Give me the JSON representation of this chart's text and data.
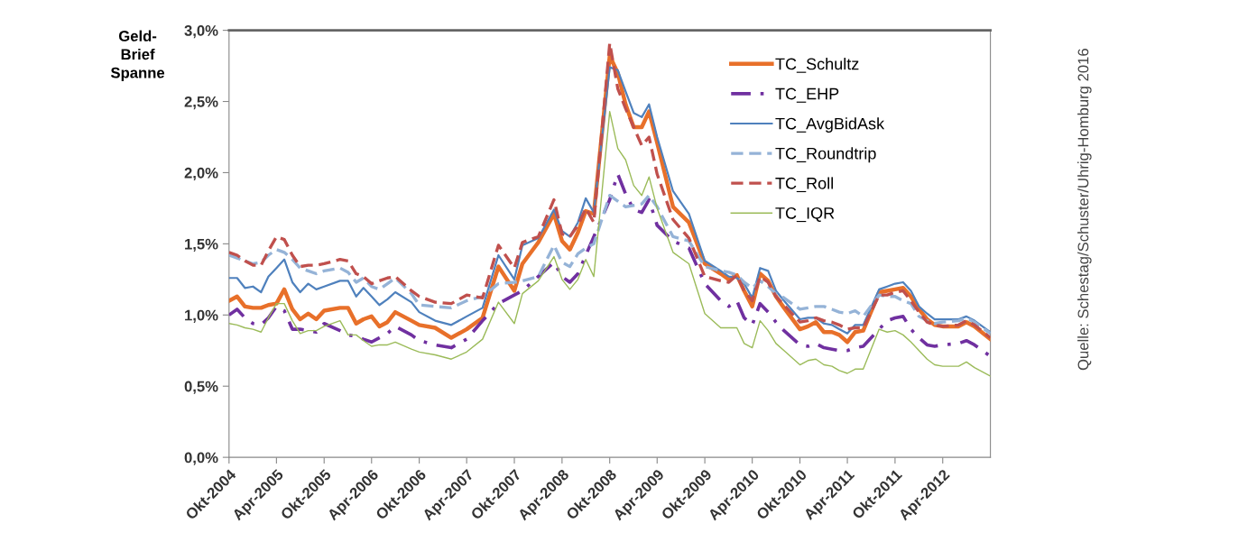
{
  "chart_data": {
    "type": "line",
    "ylabel": "Geld-\nBrief\nSpanne",
    "x": [
      "2004-10",
      "2004-11",
      "2004-12",
      "2005-01",
      "2005-02",
      "2005-03",
      "2005-04",
      "2005-05",
      "2005-06",
      "2005-07",
      "2005-08",
      "2005-09",
      "2005-10",
      "2005-12",
      "2006-01",
      "2006-02",
      "2006-03",
      "2006-04",
      "2006-05",
      "2006-06",
      "2006-07",
      "2006-09",
      "2006-10",
      "2006-12",
      "2007-02",
      "2007-04",
      "2007-06",
      "2007-08",
      "2007-10",
      "2007-11",
      "2008-01",
      "2008-03",
      "2008-04",
      "2008-05",
      "2008-06",
      "2008-07",
      "2008-08",
      "2008-10",
      "2008-11",
      "2008-12",
      "2009-01",
      "2009-02",
      "2009-03",
      "2009-04",
      "2009-06",
      "2009-08",
      "2009-10",
      "2009-12",
      "2010-01",
      "2010-02",
      "2010-03",
      "2010-04",
      "2010-05",
      "2010-06",
      "2010-07",
      "2010-08",
      "2010-10",
      "2010-11",
      "2010-12",
      "2011-01",
      "2011-02",
      "2011-03",
      "2011-04",
      "2011-05",
      "2011-06",
      "2011-08",
      "2011-09",
      "2011-10",
      "2011-11",
      "2011-12",
      "2012-01",
      "2012-02",
      "2012-03",
      "2012-04",
      "2012-06",
      "2012-07",
      "2012-08",
      "2012-10"
    ],
    "series": [
      {
        "name": "TC_Schultz",
        "color": "#e8702a",
        "line_style": "solid",
        "values": [
          1.1,
          1.13,
          1.06,
          1.05,
          1.05,
          1.07,
          1.08,
          1.18,
          1.04,
          0.97,
          1.01,
          0.97,
          1.03,
          1.05,
          1.05,
          0.94,
          0.97,
          0.99,
          0.92,
          0.95,
          1.02,
          0.96,
          0.93,
          0.91,
          0.84,
          0.9,
          0.98,
          1.34,
          1.17,
          1.36,
          1.51,
          1.71,
          1.52,
          1.46,
          1.58,
          1.73,
          1.71,
          2.82,
          2.7,
          2.48,
          2.32,
          2.32,
          2.43,
          2.21,
          1.76,
          1.65,
          1.36,
          1.29,
          1.25,
          1.28,
          1.17,
          1.06,
          1.29,
          1.24,
          1.13,
          1.05,
          0.9,
          0.92,
          0.95,
          0.88,
          0.88,
          0.86,
          0.81,
          0.88,
          0.89,
          1.16,
          1.17,
          1.18,
          1.19,
          1.13,
          1.04,
          0.97,
          0.93,
          0.92,
          0.92,
          0.95,
          0.92,
          0.83
        ]
      },
      {
        "name": "TC_EHP",
        "color": "#7030a0",
        "line_style": "dashdot",
        "values": [
          1.0,
          1.04,
          0.98,
          0.94,
          0.93,
          0.98,
          1.06,
          1.03,
          0.9,
          0.9,
          0.89,
          0.88,
          0.94,
          0.89,
          0.86,
          0.85,
          0.83,
          0.81,
          0.84,
          0.87,
          0.92,
          0.86,
          0.82,
          0.79,
          0.77,
          0.83,
          0.96,
          1.08,
          1.14,
          1.17,
          1.27,
          1.37,
          1.27,
          1.23,
          1.29,
          1.42,
          1.55,
          1.81,
          1.99,
          1.85,
          1.74,
          1.72,
          1.81,
          1.63,
          1.52,
          1.47,
          1.22,
          1.1,
          1.06,
          1.1,
          0.98,
          0.93,
          1.08,
          1.02,
          0.95,
          0.89,
          0.79,
          0.78,
          0.8,
          0.77,
          0.76,
          0.75,
          0.75,
          0.77,
          0.78,
          0.9,
          0.96,
          0.98,
          0.99,
          0.9,
          0.84,
          0.79,
          0.78,
          0.79,
          0.8,
          0.82,
          0.79,
          0.71
        ]
      },
      {
        "name": "TC_AvgBidAsk",
        "color": "#4f81bd",
        "line_style": "solid",
        "values": [
          1.26,
          1.26,
          1.19,
          1.2,
          1.16,
          1.27,
          1.33,
          1.39,
          1.23,
          1.16,
          1.22,
          1.18,
          1.2,
          1.24,
          1.24,
          1.13,
          1.19,
          1.13,
          1.07,
          1.11,
          1.16,
          1.09,
          1.02,
          0.96,
          0.93,
          0.99,
          1.05,
          1.42,
          1.25,
          1.49,
          1.54,
          1.74,
          1.59,
          1.55,
          1.65,
          1.82,
          1.72,
          2.74,
          2.72,
          2.57,
          2.42,
          2.39,
          2.48,
          2.25,
          1.87,
          1.71,
          1.38,
          1.31,
          1.27,
          1.26,
          1.22,
          1.12,
          1.33,
          1.31,
          1.17,
          1.1,
          0.97,
          0.98,
          0.98,
          0.94,
          0.93,
          0.9,
          0.87,
          0.93,
          0.93,
          1.18,
          1.2,
          1.22,
          1.23,
          1.17,
          1.06,
          1.01,
          0.97,
          0.97,
          0.97,
          0.99,
          0.96,
          0.88
        ]
      },
      {
        "name": "TC_Roundtrip",
        "color": "#95b3d7",
        "line_style": "dashed",
        "values": [
          1.42,
          1.4,
          1.38,
          1.36,
          1.37,
          1.42,
          1.46,
          1.44,
          1.39,
          1.33,
          1.31,
          1.29,
          1.31,
          1.33,
          1.3,
          1.23,
          1.26,
          1.2,
          1.18,
          1.22,
          1.26,
          1.15,
          1.07,
          1.06,
          1.05,
          1.1,
          1.13,
          1.22,
          1.23,
          1.24,
          1.27,
          1.49,
          1.37,
          1.34,
          1.43,
          1.47,
          1.5,
          1.84,
          1.8,
          1.76,
          1.77,
          1.78,
          1.84,
          1.76,
          1.55,
          1.52,
          1.34,
          1.31,
          1.3,
          1.28,
          1.23,
          1.19,
          1.24,
          1.2,
          1.15,
          1.12,
          1.04,
          1.05,
          1.06,
          1.06,
          1.04,
          1.02,
          1.01,
          1.03,
          0.99,
          1.14,
          1.13,
          1.13,
          1.1,
          1.08,
          0.99,
          0.96,
          0.94,
          0.95,
          0.96,
          0.98,
          0.95,
          0.87
        ]
      },
      {
        "name": "TC_Roll",
        "color": "#c0504d",
        "line_style": "dashed",
        "values": [
          1.44,
          1.42,
          1.38,
          1.35,
          1.35,
          1.45,
          1.55,
          1.53,
          1.42,
          1.34,
          1.35,
          1.35,
          1.36,
          1.39,
          1.38,
          1.29,
          1.27,
          1.22,
          1.24,
          1.26,
          1.27,
          1.17,
          1.13,
          1.09,
          1.08,
          1.14,
          1.12,
          1.49,
          1.33,
          1.51,
          1.55,
          1.81,
          1.57,
          1.55,
          1.63,
          1.75,
          1.65,
          2.91,
          2.59,
          2.45,
          2.32,
          2.19,
          2.25,
          1.99,
          1.67,
          1.54,
          1.27,
          1.24,
          1.23,
          1.28,
          1.17,
          1.1,
          1.27,
          1.23,
          1.13,
          1.07,
          0.95,
          0.96,
          0.98,
          0.96,
          0.95,
          0.93,
          0.9,
          0.91,
          0.91,
          1.14,
          1.14,
          1.16,
          1.17,
          1.1,
          1.02,
          0.95,
          0.93,
          0.92,
          0.93,
          0.96,
          0.93,
          0.84
        ]
      },
      {
        "name": "TC_IQR",
        "color": "#9bbb59",
        "line_style": "solid",
        "values": [
          0.94,
          0.93,
          0.91,
          0.9,
          0.88,
          0.98,
          1.08,
          1.08,
          0.96,
          0.87,
          0.89,
          0.89,
          0.92,
          0.96,
          0.86,
          0.86,
          0.82,
          0.78,
          0.79,
          0.79,
          0.81,
          0.76,
          0.74,
          0.72,
          0.69,
          0.74,
          0.83,
          1.09,
          0.94,
          1.15,
          1.24,
          1.41,
          1.25,
          1.18,
          1.25,
          1.39,
          1.27,
          2.43,
          2.17,
          2.09,
          1.91,
          1.84,
          1.97,
          1.75,
          1.44,
          1.36,
          1.01,
          0.91,
          0.91,
          0.91,
          0.8,
          0.77,
          0.96,
          0.89,
          0.8,
          0.75,
          0.65,
          0.68,
          0.69,
          0.65,
          0.64,
          0.61,
          0.59,
          0.62,
          0.62,
          0.9,
          0.88,
          0.89,
          0.86,
          0.81,
          0.75,
          0.69,
          0.65,
          0.64,
          0.64,
          0.67,
          0.63,
          0.57
        ]
      }
    ],
    "ylim": [
      0,
      3
    ],
    "yticks": [
      {
        "value": 0,
        "label": "0,0%"
      },
      {
        "value": 0.5,
        "label": "0,5%"
      },
      {
        "value": 1,
        "label": "1,0%"
      },
      {
        "value": 1.5,
        "label": "1,5%"
      },
      {
        "value": 2,
        "label": "2,0%"
      },
      {
        "value": 2.5,
        "label": "2,5%"
      },
      {
        "value": 3,
        "label": "3,0%"
      }
    ],
    "xlim": [
      "2004-10",
      "2012-10"
    ],
    "xticks": [
      {
        "value": "2004-10",
        "label": "Okt-2004"
      },
      {
        "value": "2005-04",
        "label": "Apr-2005"
      },
      {
        "value": "2005-10",
        "label": "Okt-2005"
      },
      {
        "value": "2006-04",
        "label": "Apr-2006"
      },
      {
        "value": "2006-10",
        "label": "Okt-2006"
      },
      {
        "value": "2007-04",
        "label": "Apr-2007"
      },
      {
        "value": "2007-10",
        "label": "Okt-2007"
      },
      {
        "value": "2008-04",
        "label": "Apr-2008"
      },
      {
        "value": "2008-10",
        "label": "Okt-2008"
      },
      {
        "value": "2009-04",
        "label": "Apr-2009"
      },
      {
        "value": "2009-10",
        "label": "Okt-2009"
      },
      {
        "value": "2010-04",
        "label": "Apr-2010"
      },
      {
        "value": "2010-10",
        "label": "Okt-2010"
      },
      {
        "value": "2011-04",
        "label": "Apr-2011"
      },
      {
        "value": "2011-10",
        "label": "Okt-2011"
      },
      {
        "value": "2012-04",
        "label": "Apr-2012"
      }
    ],
    "grid": false,
    "legend": "top right",
    "marker": "none",
    "annotations": [
      "Quelle: Schestag/Schuster/Uhrig-Homburg 2016"
    ]
  }
}
